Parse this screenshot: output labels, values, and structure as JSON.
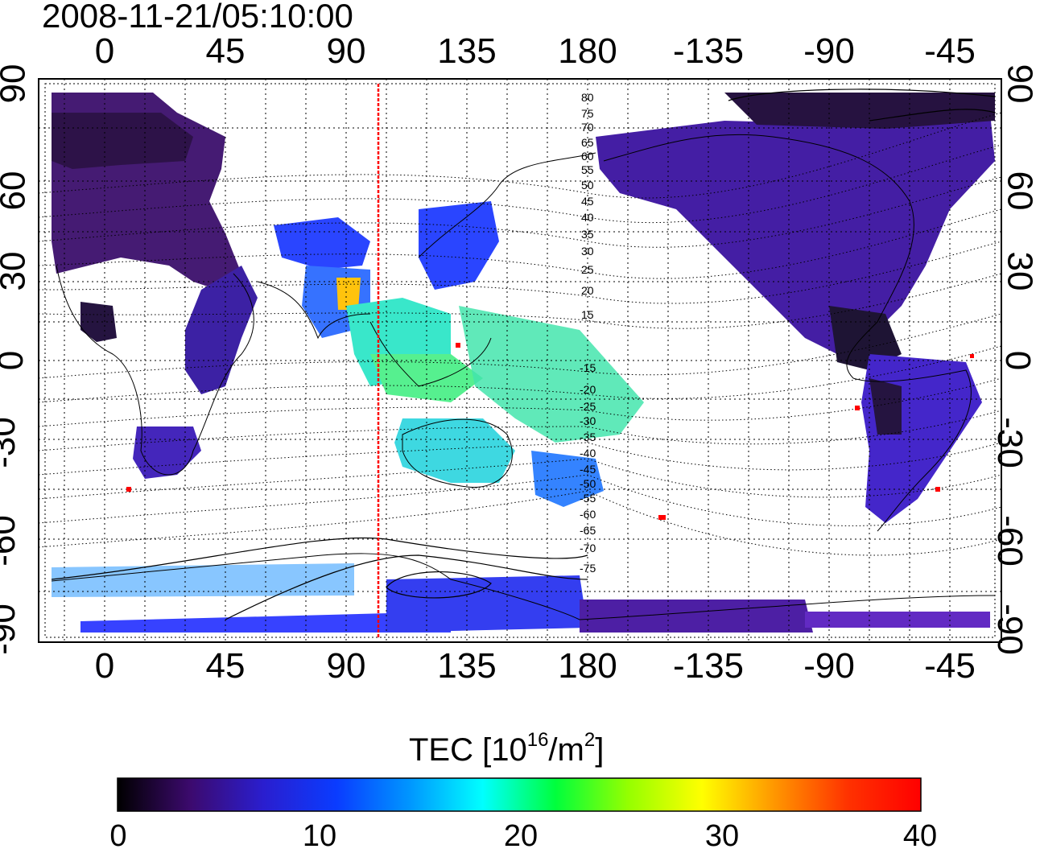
{
  "title": "2008-11-21/05:10:00",
  "x_ticks": [
    "0",
    "45",
    "90",
    "135",
    "180",
    "-135",
    "-90",
    "-45"
  ],
  "y_ticks": [
    "90",
    "60",
    "30",
    "0",
    "-30",
    "-60",
    "-90"
  ],
  "colorbar": {
    "label_main": "TEC  [10",
    "label_exp1": "16",
    "label_mid": "/m",
    "label_exp2": "2",
    "label_end": "]",
    "ticks": [
      "0",
      "10",
      "20",
      "30",
      "40"
    ],
    "min": 0,
    "max": 40,
    "colormap_stops": [
      "#000000",
      "#3c0a6e",
      "#2a1ecf",
      "#0a3cff",
      "#0096ff",
      "#00ffff",
      "#00ff3c",
      "#96ff00",
      "#ffff00",
      "#ff9600",
      "#ff3200",
      "#ff0000"
    ]
  },
  "map": {
    "lon_range": [
      -25,
      330
    ],
    "lat_range": [
      -90,
      90
    ],
    "subsolar_marker_lon": 102,
    "marker_color": "#ff0000",
    "contour_labels": [
      "80",
      "75",
      "70",
      "65",
      "60",
      "55",
      "50",
      "45",
      "40",
      "35",
      "30",
      "25",
      "20",
      "15",
      "-15",
      "-20",
      "-25",
      "-30",
      "-35",
      "-40",
      "-45",
      "-50",
      "-55",
      "-60",
      "-65",
      "-70",
      "-75"
    ]
  }
}
